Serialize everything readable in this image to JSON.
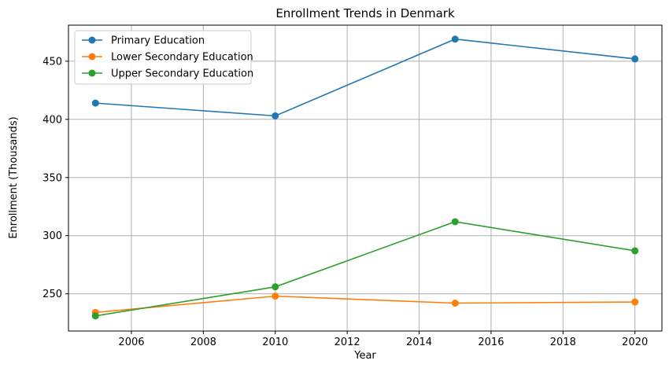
{
  "chart_data": {
    "type": "line",
    "title": "Enrollment Trends in Denmark",
    "xlabel": "Year",
    "ylabel": "Enrollment (Thousands)",
    "x": [
      2005,
      2010,
      2015,
      2020
    ],
    "xlim": [
      2004.25,
      2020.75
    ],
    "ylim": [
      218,
      481
    ],
    "xticks": [
      2006,
      2008,
      2010,
      2012,
      2014,
      2016,
      2018,
      2020
    ],
    "yticks": [
      250,
      300,
      350,
      400,
      450
    ],
    "grid": true,
    "legend_position": "top-left",
    "series": [
      {
        "name": "Primary Education",
        "color": "#1f77b4",
        "values": [
          414,
          403,
          469,
          452
        ]
      },
      {
        "name": "Lower Secondary Education",
        "color": "#ff7f0e",
        "values": [
          234,
          248,
          242,
          243
        ]
      },
      {
        "name": "Upper Secondary Education",
        "color": "#2ca02c",
        "values": [
          231,
          256,
          312,
          287
        ]
      }
    ]
  }
}
